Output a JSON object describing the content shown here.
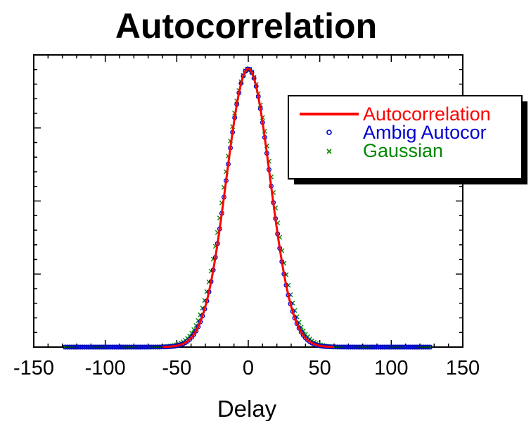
{
  "chart_data": {
    "type": "line",
    "title": "Autocorrelation",
    "xlabel": "Delay",
    "ylabel": "",
    "xlim": [
      -150,
      150
    ],
    "ylim": [
      0,
      1.05
    ],
    "xticks": [
      -150,
      -100,
      -50,
      0,
      50,
      100,
      150
    ],
    "x_range": [
      -128,
      128
    ],
    "grid": false,
    "legend_position": "top-right",
    "series": [
      {
        "name": "Autocorrelation",
        "color": "#ff0000",
        "marker": "line",
        "fwhm": 36,
        "peak": 1.0
      },
      {
        "name": "Ambig Autocor",
        "color": "#0000cc",
        "marker": "circle",
        "fwhm": 36,
        "peak": 1.0
      },
      {
        "name": "Gaussian",
        "color": "#008800",
        "marker": "x",
        "fwhm": 38,
        "peak": 1.0
      }
    ]
  }
}
